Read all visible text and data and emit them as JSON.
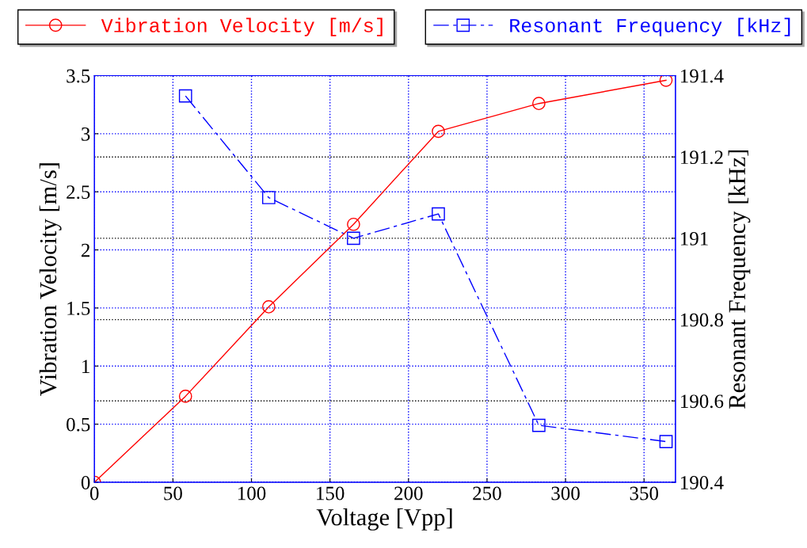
{
  "chart_data": {
    "type": "line",
    "xlabel": "Voltage [Vpp]",
    "ylabel": "Vibration Velocity [m/s]",
    "y2label": "Resonant Frequency [kHz]",
    "xlim": [
      0,
      370
    ],
    "xticks": [
      0,
      50,
      100,
      150,
      200,
      250,
      300,
      350
    ],
    "ylim": [
      0,
      3.5
    ],
    "yticks": [
      0,
      0.5,
      1,
      1.5,
      2,
      2.5,
      3,
      3.5
    ],
    "y2lim": [
      190.4,
      191.4
    ],
    "y2ticks": [
      190.4,
      190.6,
      190.8,
      191,
      191.2,
      191.4
    ],
    "grid": true,
    "legend": "top",
    "series": [
      {
        "name": "Vibration Velocity [m/s]",
        "color": "#ff0000",
        "x": [
          0,
          58,
          111,
          165,
          219,
          283,
          364
        ],
        "values": [
          0,
          0.74,
          1.51,
          2.22,
          3.02,
          3.26,
          3.46
        ],
        "marker": "circle",
        "line_style": "solid"
      },
      {
        "name": "Resonant Frequency [kHz]",
        "color": "#0000ff",
        "axis": "y2",
        "x": [
          58,
          111,
          165,
          219,
          283,
          364
        ],
        "values": [
          191.35,
          191.1,
          191.0,
          191.06,
          190.54,
          190.5
        ],
        "marker": "square",
        "line_style": "dashed"
      }
    ]
  }
}
